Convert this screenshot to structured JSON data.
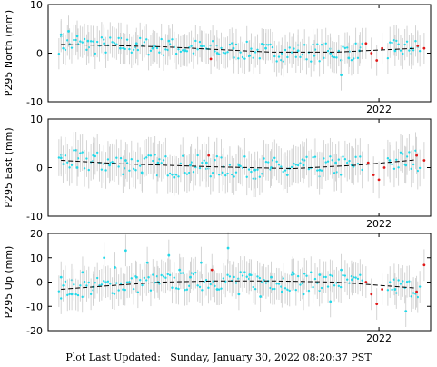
{
  "footer": "Plot Last Updated:   Sunday, January 30, 2022 08:20:37 PST",
  "colors": {
    "obs": "#22d8e8",
    "flagged": "#e01818",
    "error_bars": "#cfcfcf",
    "model": "#000000"
  },
  "chart_data": [
    {
      "type": "scatter",
      "title": "",
      "ylabel": "P295 North (mm)",
      "ylim": [
        -10,
        10
      ],
      "yticks": [
        -10,
        0,
        10
      ],
      "xticks": [
        {
          "label": "2022",
          "x": 2022.0
        }
      ],
      "xlim": [
        2018.93,
        2022.48
      ],
      "grid": false,
      "error_bar_half_width_mm": 3.2,
      "model_trend": {
        "style": "dashed",
        "points": [
          [
            2019.05,
            1.8
          ],
          [
            2020.0,
            1.3
          ],
          [
            2021.0,
            0.2
          ],
          [
            2021.6,
            0.2
          ],
          [
            2022.35,
            1.0
          ]
        ]
      },
      "series": [
        {
          "color_key": "obs",
          "values": [
            [
              2019.05,
              3.8
            ],
            [
              2019.12,
              4.5
            ],
            [
              2019.2,
              3.5
            ],
            [
              2019.3,
              2.5
            ],
            [
              2019.45,
              2.0
            ],
            [
              2019.6,
              1.0
            ],
            [
              2019.75,
              2.0
            ],
            [
              2019.9,
              1.0
            ],
            [
              2020.05,
              2.5
            ],
            [
              2020.2,
              0.5
            ],
            [
              2020.35,
              1.5
            ],
            [
              2020.5,
              0.0
            ],
            [
              2020.65,
              1.0
            ],
            [
              2020.8,
              -0.5
            ],
            [
              2020.95,
              1.0
            ],
            [
              2021.1,
              0.0
            ],
            [
              2021.25,
              0.5
            ],
            [
              2021.4,
              -0.5
            ],
            [
              2021.55,
              0.0
            ],
            [
              2021.65,
              -4.5
            ],
            [
              2021.72,
              -1.0
            ],
            [
              2021.82,
              0.5
            ],
            [
              2022.15,
              0.5
            ],
            [
              2022.3,
              1.0
            ]
          ]
        },
        {
          "color_key": "flagged",
          "values": [
            [
              2020.44,
              -1.2
            ],
            [
              2021.88,
              2.0
            ],
            [
              2021.93,
              0.0
            ],
            [
              2021.98,
              -1.5
            ],
            [
              2022.03,
              1.0
            ],
            [
              2022.36,
              1.5
            ],
            [
              2022.42,
              1.0
            ]
          ]
        }
      ]
    },
    {
      "type": "scatter",
      "title": "",
      "ylabel": "P295 East (mm)",
      "ylim": [
        -10,
        10
      ],
      "yticks": [
        -10,
        0,
        10
      ],
      "xticks": [
        {
          "label": "2022",
          "x": 2022.0
        }
      ],
      "xlim": [
        2018.93,
        2022.48
      ],
      "grid": false,
      "error_bar_half_width_mm": 3.8,
      "model_trend": {
        "style": "dashed",
        "points": [
          [
            2019.05,
            1.5
          ],
          [
            2019.6,
            0.8
          ],
          [
            2020.4,
            0.2
          ],
          [
            2021.2,
            -0.2
          ],
          [
            2021.8,
            0.5
          ],
          [
            2022.35,
            1.6
          ]
        ]
      },
      "series": [
        {
          "color_key": "obs",
          "values": [
            [
              2019.05,
              2.0
            ],
            [
              2019.2,
              0.0
            ],
            [
              2019.35,
              2.5
            ],
            [
              2019.5,
              0.5
            ],
            [
              2019.65,
              1.5
            ],
            [
              2019.8,
              -1.0
            ],
            [
              2019.95,
              1.0
            ],
            [
              2020.1,
              -2.0
            ],
            [
              2020.25,
              0.5
            ],
            [
              2020.4,
              1.0
            ],
            [
              2020.55,
              -1.0
            ],
            [
              2020.7,
              0.5
            ],
            [
              2020.85,
              -0.5
            ],
            [
              2021.0,
              0.0
            ],
            [
              2021.15,
              -1.5
            ],
            [
              2021.3,
              0.5
            ],
            [
              2021.45,
              -0.5
            ],
            [
              2021.6,
              1.0
            ],
            [
              2021.75,
              0.5
            ],
            [
              2022.1,
              1.5
            ],
            [
              2022.25,
              0.5
            ]
          ]
        },
        {
          "color_key": "flagged",
          "values": [
            [
              2020.42,
              2.5
            ],
            [
              2021.9,
              1.0
            ],
            [
              2021.95,
              -1.5
            ],
            [
              2022.0,
              -2.5
            ],
            [
              2022.05,
              0.0
            ],
            [
              2022.35,
              2.5
            ],
            [
              2022.42,
              1.5
            ]
          ]
        }
      ]
    },
    {
      "type": "scatter",
      "title": "",
      "ylabel": "P295 Up (mm)",
      "ylim": [
        -20,
        20
      ],
      "yticks": [
        -20,
        -10,
        0,
        10,
        20
      ],
      "xticks": [
        {
          "label": "2022",
          "x": 2022.0
        }
      ],
      "xlim": [
        2018.93,
        2022.48
      ],
      "grid": false,
      "error_bar_half_width_mm": 6.5,
      "model_trend": {
        "style": "dashed",
        "points": [
          [
            2019.05,
            -3.0
          ],
          [
            2019.5,
            -1.5
          ],
          [
            2020.0,
            0.0
          ],
          [
            2020.5,
            0.5
          ],
          [
            2021.0,
            0.5
          ],
          [
            2021.6,
            0.0
          ],
          [
            2022.35,
            -2.5
          ]
        ]
      },
      "series": [
        {
          "color_key": "obs",
          "values": [
            [
              2019.05,
              2.0
            ],
            [
              2019.15,
              -5.0
            ],
            [
              2019.25,
              4.0
            ],
            [
              2019.35,
              -2.0
            ],
            [
              2019.45,
              10.0
            ],
            [
              2019.55,
              6.0
            ],
            [
              2019.65,
              13.0
            ],
            [
              2019.75,
              2.0
            ],
            [
              2019.85,
              8.0
            ],
            [
              2019.95,
              0.0
            ],
            [
              2020.05,
              11.0
            ],
            [
              2020.15,
              5.0
            ],
            [
              2020.25,
              2.0
            ],
            [
              2020.35,
              8.0
            ],
            [
              2020.5,
              -3.0
            ],
            [
              2020.6,
              14.0
            ],
            [
              2020.7,
              -5.0
            ],
            [
              2020.8,
              3.0
            ],
            [
              2020.9,
              -6.0
            ],
            [
              2021.0,
              2.0
            ],
            [
              2021.1,
              -4.0
            ],
            [
              2021.2,
              4.0
            ],
            [
              2021.3,
              -5.0
            ],
            [
              2021.45,
              3.0
            ],
            [
              2021.55,
              -8.0
            ],
            [
              2021.65,
              5.0
            ],
            [
              2021.75,
              1.0
            ],
            [
              2022.15,
              -3.0
            ],
            [
              2022.25,
              -12.0
            ]
          ]
        },
        {
          "color_key": "flagged",
          "values": [
            [
              2020.45,
              5.0
            ],
            [
              2021.88,
              0.0
            ],
            [
              2021.93,
              -5.0
            ],
            [
              2021.98,
              -9.0
            ],
            [
              2022.03,
              -3.0
            ],
            [
              2022.35,
              -4.0
            ],
            [
              2022.42,
              7.0
            ]
          ]
        }
      ]
    }
  ]
}
